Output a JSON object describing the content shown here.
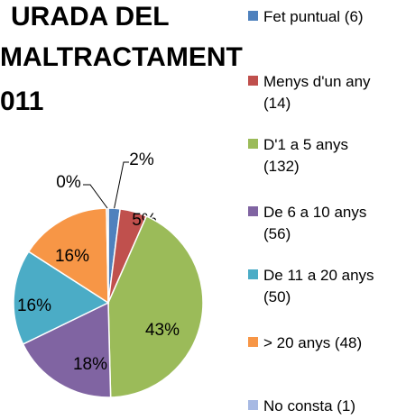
{
  "chart_data": {
    "type": "pie",
    "title": [
      "URADA DEL",
      "MALTRACTAMENT",
      "011"
    ],
    "categories": [
      "Fet puntual (6)",
      "Menys d'un any (14)",
      "D'1 a 5 anys (132)",
      "De 6 a 10 anys (56)",
      "De 11 a 20 anys (50)",
      "> 20 anys (48)",
      "No consta (1)"
    ],
    "values": [
      2,
      4.6,
      43,
      18.2,
      16.3,
      15.6,
      0.3
    ],
    "value_labels": [
      "2%",
      "5%",
      "43%",
      "18%",
      "16%",
      "16%",
      "0%"
    ],
    "colors": [
      "#4f81bd",
      "#c0504d",
      "#9bbb59",
      "#8064a2",
      "#4bacc6",
      "#f79646",
      "#a7b9e3"
    ],
    "legend": "right"
  }
}
